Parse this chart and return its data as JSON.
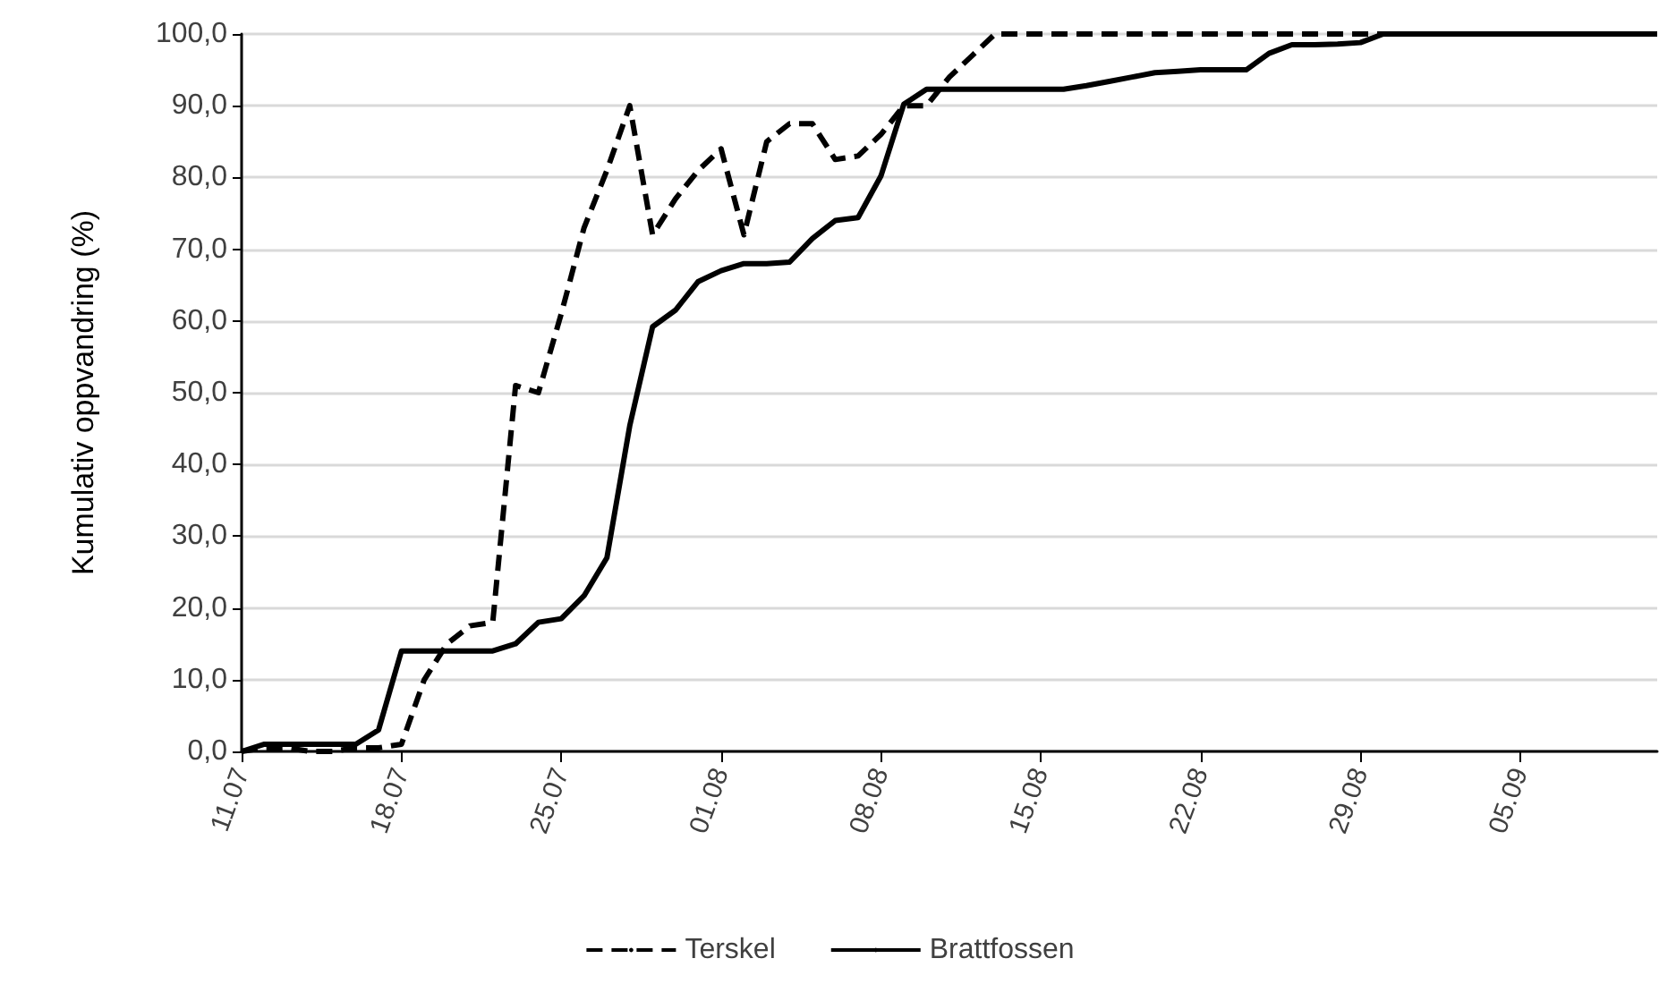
{
  "chart_data": {
    "type": "line",
    "ylabel": "Kumulativ oppvandring (%)",
    "x": [
      "--07-11",
      "--07-12",
      "--07-13",
      "--07-14",
      "--07-15",
      "--07-16",
      "--07-17",
      "--07-18",
      "--07-19",
      "--07-20",
      "--07-21",
      "--07-22",
      "--07-23",
      "--07-24",
      "--07-25",
      "--07-26",
      "--07-27",
      "--07-28",
      "--07-29",
      "--07-30",
      "--07-31",
      "--08-01",
      "--08-02",
      "--08-03",
      "--08-04",
      "--08-05",
      "--08-06",
      "--08-07",
      "--08-08",
      "--08-09",
      "--08-10",
      "--08-11",
      "--08-12",
      "--08-13",
      "--08-14",
      "--08-15",
      "--08-16",
      "--08-17",
      "--08-18",
      "--08-19",
      "--08-20",
      "--08-21",
      "--08-22",
      "--08-23",
      "--08-24",
      "--08-25",
      "--08-26",
      "--08-27",
      "--08-28",
      "--08-29",
      "--08-30",
      "--08-31",
      "--09-01",
      "--09-02",
      "--09-03",
      "--09-04",
      "--09-05",
      "--09-06",
      "--09-07",
      "--09-08",
      "--09-09",
      "--09-10",
      "--09-11"
    ],
    "series": [
      {
        "name": "Terskel",
        "color": "#000000",
        "line_style": "dashed",
        "values": [
          0,
          0.5,
          0.5,
          0,
          0,
          0.5,
          0.5,
          1,
          10,
          15,
          17.5,
          18,
          51,
          50,
          61,
          73,
          81,
          90,
          72,
          77,
          81,
          84,
          72,
          85,
          87.5,
          87.5,
          82.5,
          83,
          86,
          90,
          90,
          94,
          97,
          100,
          100,
          100,
          100,
          100,
          100,
          100,
          100,
          100,
          100,
          100,
          100,
          100,
          100,
          100,
          100,
          100,
          100,
          100,
          100,
          100,
          100,
          100,
          100,
          100,
          100,
          100,
          100,
          100,
          100
        ]
      },
      {
        "name": "Brattfossen",
        "color": "#000000",
        "line_style": "solid",
        "values": [
          0,
          1,
          1,
          1,
          1,
          1,
          3,
          14,
          14,
          14,
          14,
          14,
          15,
          18,
          18.5,
          21.7,
          27,
          45.4,
          59.2,
          61.5,
          65.5,
          67,
          68,
          68,
          68.2,
          71.5,
          74,
          74.4,
          80.2,
          90.2,
          92.3,
          92.3,
          92.3,
          92.3,
          92.3,
          92.3,
          92.3,
          92.8,
          93.4,
          94,
          94.6,
          94.8,
          95,
          95,
          95,
          97.3,
          98.5,
          98.5,
          98.6,
          98.8,
          100,
          100,
          100,
          100,
          100,
          100,
          100,
          100,
          100,
          100,
          100,
          100,
          100
        ]
      }
    ],
    "xlim": [
      "--07-11",
      "--09-11"
    ],
    "xticks": [
      {
        "value": "--07-11",
        "label": "11.07"
      },
      {
        "value": "--07-18",
        "label": "18.07"
      },
      {
        "value": "--07-25",
        "label": "25.07"
      },
      {
        "value": "--08-01",
        "label": "01.08"
      },
      {
        "value": "--08-08",
        "label": "08.08"
      },
      {
        "value": "--08-15",
        "label": "15.08"
      },
      {
        "value": "--08-22",
        "label": "22.08"
      },
      {
        "value": "--08-29",
        "label": "29.08"
      },
      {
        "value": "--09-05",
        "label": "05.09"
      }
    ],
    "ylim": [
      0,
      100
    ],
    "yticks": [
      {
        "value": 0,
        "label": "0,0"
      },
      {
        "value": 10,
        "label": "10,0"
      },
      {
        "value": 20,
        "label": "20,0"
      },
      {
        "value": 30,
        "label": "30,0"
      },
      {
        "value": 40,
        "label": "40,0"
      },
      {
        "value": 50,
        "label": "50,0"
      },
      {
        "value": 60,
        "label": "60,0"
      },
      {
        "value": 70,
        "label": "70,0"
      },
      {
        "value": 80,
        "label": "80,0"
      },
      {
        "value": 90,
        "label": "90,0"
      },
      {
        "value": 100,
        "label": "100,0"
      }
    ],
    "grid": "y",
    "legend": "bottom",
    "marker": "none"
  }
}
